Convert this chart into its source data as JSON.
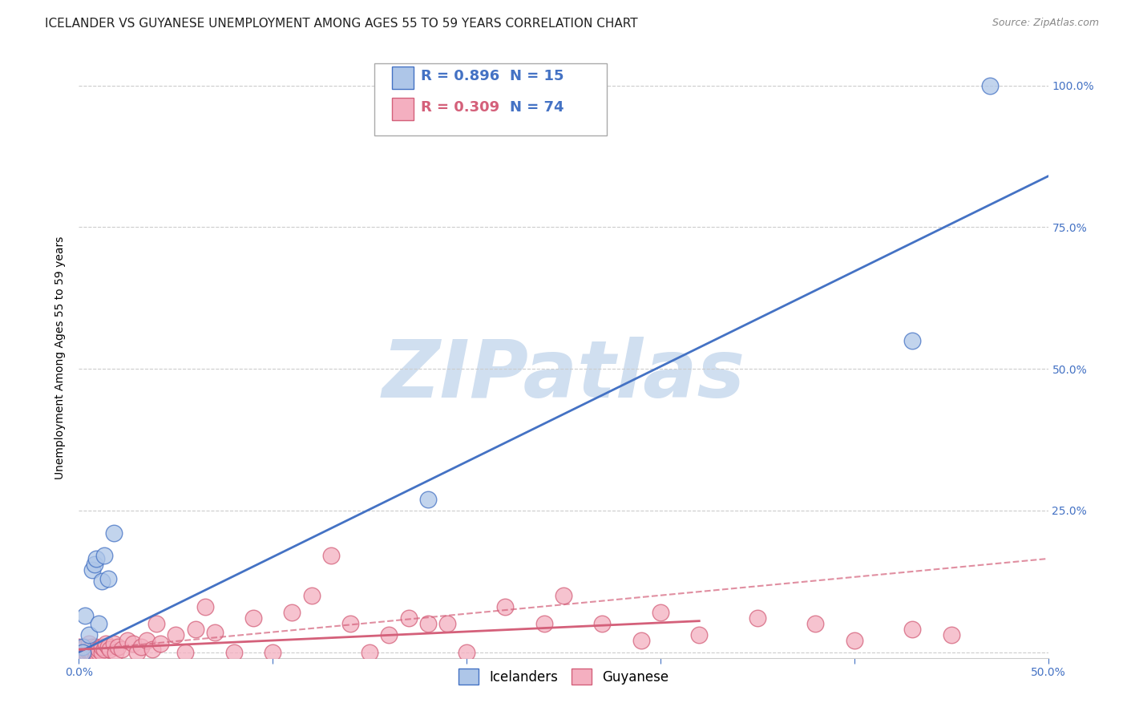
{
  "title": "ICELANDER VS GUYANESE UNEMPLOYMENT AMONG AGES 55 TO 59 YEARS CORRELATION CHART",
  "source": "Source: ZipAtlas.com",
  "ylabel": "Unemployment Among Ages 55 to 59 years",
  "xlim": [
    0.0,
    0.5
  ],
  "ylim": [
    -0.01,
    1.05
  ],
  "yticks": [
    0.0,
    0.25,
    0.5,
    0.75,
    1.0
  ],
  "ytick_labels": [
    "",
    "25.0%",
    "50.0%",
    "75.0%",
    "100.0%"
  ],
  "xticks": [
    0.0,
    0.1,
    0.2,
    0.3,
    0.4,
    0.5
  ],
  "xtick_labels": [
    "0.0%",
    "",
    "",
    "",
    "",
    "50.0%"
  ],
  "icelanders_R": 0.896,
  "icelanders_N": 15,
  "guyanese_R": 0.309,
  "guyanese_N": 74,
  "icelanders_color": "#aec6e8",
  "icelanders_line_color": "#4472c4",
  "guyanese_color": "#f4afc0",
  "guyanese_line_color": "#d4607a",
  "background_color": "#ffffff",
  "watermark_text": "ZIPatlas",
  "watermark_color": "#d0dff0",
  "icelanders_scatter_x": [
    0.002,
    0.003,
    0.005,
    0.007,
    0.008,
    0.009,
    0.01,
    0.012,
    0.013,
    0.015,
    0.018,
    0.18,
    0.43,
    0.47,
    0.002
  ],
  "icelanders_scatter_y": [
    0.01,
    0.065,
    0.03,
    0.145,
    0.155,
    0.165,
    0.05,
    0.125,
    0.17,
    0.13,
    0.21,
    0.27,
    0.55,
    1.0,
    0.0
  ],
  "guyanese_scatter_x": [
    0.0,
    0.0,
    0.0,
    0.0,
    0.0,
    0.0,
    0.001,
    0.001,
    0.002,
    0.002,
    0.003,
    0.003,
    0.004,
    0.004,
    0.005,
    0.005,
    0.005,
    0.006,
    0.007,
    0.007,
    0.008,
    0.008,
    0.009,
    0.009,
    0.01,
    0.01,
    0.012,
    0.012,
    0.013,
    0.014,
    0.015,
    0.016,
    0.018,
    0.019,
    0.02,
    0.022,
    0.025,
    0.028,
    0.03,
    0.032,
    0.035,
    0.038,
    0.04,
    0.042,
    0.05,
    0.055,
    0.06,
    0.065,
    0.07,
    0.08,
    0.09,
    0.1,
    0.11,
    0.12,
    0.13,
    0.14,
    0.15,
    0.16,
    0.17,
    0.18,
    0.19,
    0.2,
    0.22,
    0.24,
    0.25,
    0.27,
    0.29,
    0.3,
    0.32,
    0.35,
    0.38,
    0.4,
    0.43,
    0.45
  ],
  "guyanese_scatter_y": [
    0.0,
    0.0,
    0.0,
    0.005,
    0.005,
    0.01,
    0.0,
    0.005,
    0.0,
    0.005,
    0.0,
    0.01,
    0.0,
    0.005,
    0.0,
    0.005,
    0.015,
    0.0,
    0.0,
    0.01,
    0.0,
    0.005,
    0.0,
    0.01,
    0.0,
    0.005,
    0.0,
    0.01,
    0.005,
    0.015,
    0.01,
    0.005,
    0.015,
    0.0,
    0.01,
    0.005,
    0.02,
    0.015,
    0.0,
    0.01,
    0.02,
    0.005,
    0.05,
    0.015,
    0.03,
    0.0,
    0.04,
    0.08,
    0.035,
    0.0,
    0.06,
    0.0,
    0.07,
    0.1,
    0.17,
    0.05,
    0.0,
    0.03,
    0.06,
    0.05,
    0.05,
    0.0,
    0.08,
    0.05,
    0.1,
    0.05,
    0.02,
    0.07,
    0.03,
    0.06,
    0.05,
    0.02,
    0.04,
    0.03
  ],
  "icelanders_line_x": [
    0.0,
    0.5
  ],
  "icelanders_line_y": [
    0.0,
    0.84
  ],
  "guyanese_solid_line_x": [
    0.0,
    0.32
  ],
  "guyanese_solid_line_y": [
    0.005,
    0.055
  ],
  "guyanese_dashed_line_x": [
    0.0,
    0.5
  ],
  "guyanese_dashed_line_y": [
    0.003,
    0.165
  ],
  "grid_color": "#cccccc",
  "title_fontsize": 11,
  "axis_label_fontsize": 10,
  "tick_fontsize": 10,
  "legend_text_fontsize": 13,
  "right_ytick_color": "#4472c4",
  "xtick_color": "#4472c4"
}
